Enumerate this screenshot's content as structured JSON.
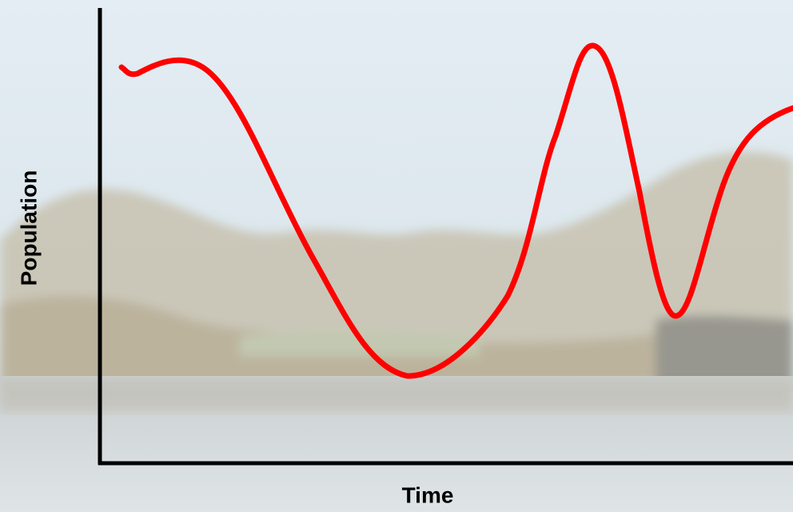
{
  "axes": {
    "y_label": "Population",
    "x_label": "Time"
  }
}
